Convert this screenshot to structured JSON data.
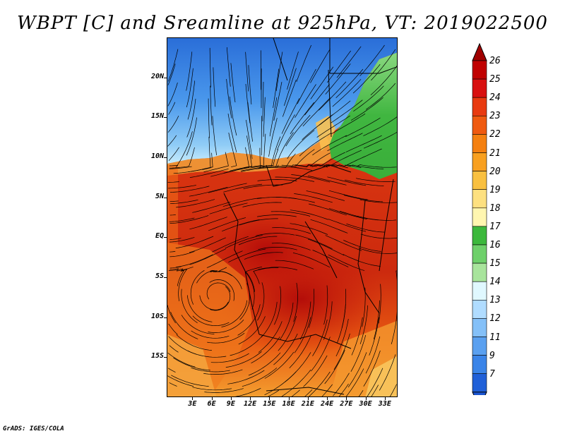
{
  "title": "WBPT [C] and Sreamline at 925hPa, VT: 2019022500",
  "footer": "GrADS: IGES/COLA",
  "map": {
    "lat_range": [
      -20,
      25
    ],
    "lon_range": [
      -1,
      35
    ],
    "y_ticks": [
      {
        "lat": 20,
        "label": "20N"
      },
      {
        "lat": 15,
        "label": "15N"
      },
      {
        "lat": 10,
        "label": "10N"
      },
      {
        "lat": 5,
        "label": "5N"
      },
      {
        "lat": 0,
        "label": "EQ"
      },
      {
        "lat": -5,
        "label": "5S"
      },
      {
        "lat": -10,
        "label": "10S"
      },
      {
        "lat": -15,
        "label": "15S"
      }
    ],
    "x_ticks": [
      {
        "lon": 3,
        "label": "3E"
      },
      {
        "lon": 6,
        "label": "6E"
      },
      {
        "lon": 9,
        "label": "9E"
      },
      {
        "lon": 12,
        "label": "12E"
      },
      {
        "lon": 15,
        "label": "15E"
      },
      {
        "lon": 18,
        "label": "18E"
      },
      {
        "lon": 21,
        "label": "21E"
      },
      {
        "lon": 24,
        "label": "24E"
      },
      {
        "lon": 27,
        "label": "27E"
      },
      {
        "lon": 30,
        "label": "30E"
      },
      {
        "lon": 33,
        "label": "33E"
      }
    ]
  },
  "colorbar": {
    "labels": [
      "26",
      "25",
      "24",
      "23",
      "22",
      "21",
      "20",
      "19",
      "18",
      "17",
      "16",
      "15",
      "14",
      "13",
      "12",
      "11",
      "9",
      "7"
    ],
    "colors": [
      "#c00000",
      "#d81010",
      "#e83a10",
      "#ef5a10",
      "#f48010",
      "#f8a020",
      "#f9c040",
      "#fde080",
      "#fff6b0",
      "#3cb83c",
      "#6ed06a",
      "#a8e49c",
      "#e0f8ff",
      "#b0dcff",
      "#84c0f8",
      "#5aa0f0",
      "#3a84e8",
      "#2060d8"
    ],
    "arrow_top_color": "#a00000",
    "arrow_bottom_color": "#1a54d0"
  }
}
